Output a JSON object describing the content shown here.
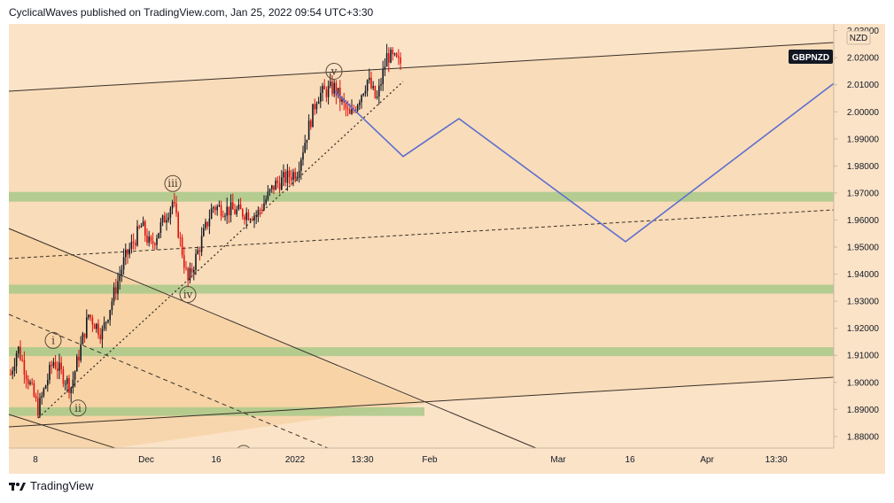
{
  "header": {
    "publisher_line": "CyclicalWaves published on TradingView.com, Jan 25, 2022 09:54 UTC+3:30"
  },
  "footer": {
    "brand": "TradingView",
    "logo_icon": "tradingview-logo-icon"
  },
  "colors": {
    "background": "#fbe3c8",
    "outer_bg": "#ffffff",
    "channel_fill": "#f8d8b0",
    "zone_green": "#a9c98a",
    "candle_up": "#131722",
    "candle_down": "#e01010",
    "projection": "#5c6fd0",
    "trendline": "#3a3028",
    "symbol_badge": "#131722"
  },
  "chart_data": {
    "type": "candlestick",
    "symbol": "GBPNZD",
    "currency": "NZD",
    "title": "",
    "ylim": [
      1.8757,
      2.0325
    ],
    "y_ticks": [
      "1.88000",
      "1.89000",
      "1.90000",
      "1.91000",
      "1.92000",
      "1.93000",
      "1.94000",
      "1.95000",
      "1.96000",
      "1.97000",
      "1.98000",
      "1.99000",
      "2.00000",
      "2.01000",
      "2.02000",
      "2.03000"
    ],
    "x_ticks": [
      "8",
      "Dec",
      "16",
      "2022",
      "13:30",
      "Feb",
      "Mar",
      "16",
      "Apr",
      "13:30"
    ],
    "support_resistance_zones": [
      {
        "low": 1.9668,
        "high": 1.9704
      },
      {
        "low": 1.9328,
        "high": 1.9361
      },
      {
        "low": 1.9097,
        "high": 1.913
      },
      {
        "low": 1.8876,
        "high": 1.8908
      }
    ],
    "wave_labels": [
      {
        "label": "i",
        "price": 1.9155
      },
      {
        "label": "ii",
        "price": 1.8905
      },
      {
        "label": "iii",
        "price": 1.9735
      },
      {
        "label": "iv",
        "price": 1.9325
      },
      {
        "label": "v",
        "price": 2.015
      }
    ],
    "projection_path": [
      2.0075,
      1.9835,
      1.9975,
      1.952,
      2.0105
    ],
    "last_price_label": "GBPNZD"
  }
}
